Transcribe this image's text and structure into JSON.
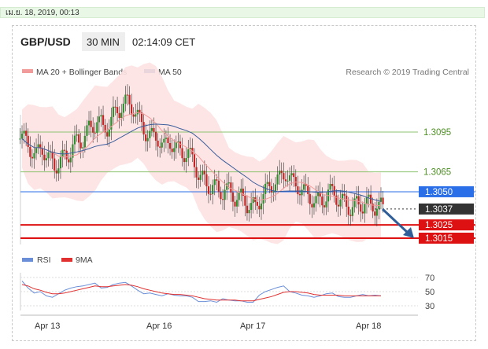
{
  "header_bar": {
    "date_text": "เม.ย. 18, 2019, 00:13"
  },
  "chart_header": {
    "symbol": "GBP/USD",
    "interval": "30 MIN",
    "time": "02:14:09 CET"
  },
  "legend": {
    "ma20_label": "MA 20 + Bollinger Bands",
    "ma20_color": "#f29b9b",
    "ma50_label": "MA 50",
    "ma50_color": "#3b5e9c",
    "credit": "Research © 2019 Trading Central"
  },
  "rsi_legend": {
    "rsi_label": "RSI",
    "rsi_color": "#6a8fd8",
    "ma_label": "9MA",
    "ma_color": "#e03030"
  },
  "colors": {
    "up": "#2f8f2f",
    "down": "#c62424",
    "band": "#fde2e2",
    "support": "#dd1111",
    "current": "#333333",
    "pivot": "#2a6fe8",
    "resistance": "#8dc26f"
  },
  "chart_data": {
    "type": "candlestick",
    "x_ticks": [
      "Apr 13",
      "Apr 16",
      "Apr 17",
      "Apr 18"
    ],
    "y_ticks": [
      1.3095,
      1.3065,
      1.305,
      1.3037,
      1.3025,
      1.3015
    ],
    "price_levels": [
      {
        "value": 1.3095,
        "label": "1.3095",
        "kind": "resistance"
      },
      {
        "value": 1.3065,
        "label": "1.3065",
        "kind": "resistance"
      },
      {
        "value": 1.305,
        "label": "1.3050",
        "kind": "pivot"
      },
      {
        "value": 1.3037,
        "label": "1.3037",
        "kind": "current"
      },
      {
        "value": 1.3025,
        "label": "1.3025",
        "kind": "support"
      },
      {
        "value": 1.3015,
        "label": "1.3015",
        "kind": "support"
      }
    ],
    "close_series": [
      1.309,
      1.3082,
      1.3078,
      1.3083,
      1.3075,
      1.307,
      1.3073,
      1.3077,
      1.3084,
      1.3088,
      1.3092,
      1.3098,
      1.3104,
      1.3098,
      1.31,
      1.311,
      1.3114,
      1.3118,
      1.3112,
      1.3104,
      1.3094,
      1.3092,
      1.309,
      1.3084,
      1.3088,
      1.3082,
      1.308,
      1.3078,
      1.3072,
      1.306,
      1.3056,
      1.3054,
      1.305,
      1.3052,
      1.3048,
      1.3046,
      1.3044,
      1.304,
      1.3038,
      1.3046,
      1.3052,
      1.3056,
      1.306,
      1.3064,
      1.3058,
      1.3054,
      1.305,
      1.3046,
      1.3042,
      1.3044,
      1.3048,
      1.305,
      1.3042,
      1.304,
      1.3038,
      1.304,
      1.3042,
      1.3039,
      1.304,
      1.3037
    ],
    "rsi_axis": [
      70,
      50,
      30
    ],
    "rsi_series": [
      65,
      55,
      48,
      50,
      44,
      42,
      47,
      52,
      55,
      57,
      58,
      60,
      62,
      55,
      56,
      60,
      62,
      63,
      58,
      52,
      47,
      48,
      46,
      44,
      47,
      45,
      44,
      44,
      42,
      36,
      36,
      37,
      35,
      40,
      38,
      37,
      37,
      35,
      35,
      45,
      50,
      53,
      56,
      58,
      50,
      48,
      45,
      44,
      42,
      44,
      47,
      48,
      43,
      42,
      42,
      44,
      46,
      44,
      45,
      44
    ],
    "rsi_ma_series": [
      60,
      58,
      54,
      52,
      49,
      47,
      47,
      48,
      50,
      52,
      54,
      56,
      58,
      57,
      57,
      58,
      59,
      60,
      59,
      57,
      54,
      52,
      50,
      48,
      47,
      46,
      46,
      45,
      44,
      42,
      40,
      39,
      38,
      38,
      38,
      38,
      37,
      37,
      37,
      39,
      41,
      43,
      46,
      49,
      50,
      50,
      49,
      48,
      46,
      45,
      45,
      45,
      45,
      44,
      44,
      44,
      44,
      44,
      44,
      44
    ],
    "target_arrow": "bearish toward 1.3015"
  }
}
